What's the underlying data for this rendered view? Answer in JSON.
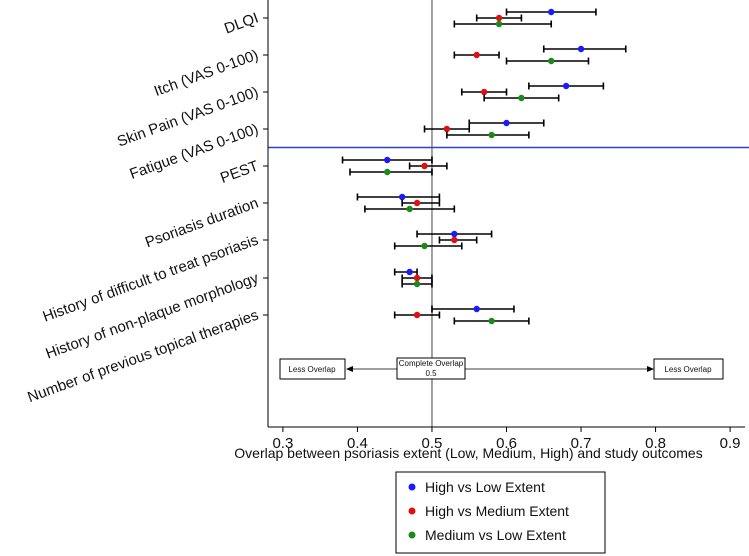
{
  "chart_data": {
    "type": "forest",
    "xlabel": "Overlap between psoriasis extent (Low, Medium, High) and study outcomes",
    "xlim": [
      0.28,
      0.92
    ],
    "xticks": [
      0.3,
      0.4,
      0.5,
      0.6,
      0.7,
      0.8,
      0.9
    ],
    "xtick_labels": [
      "0.3",
      "0.4",
      "0.5",
      "0.6",
      "0.7",
      "0.8",
      "0.9"
    ],
    "reference_line": 0.5,
    "categories": [
      "DLQI",
      "Itch (VAS 0-100)",
      "Skin Pain (VAS 0-100)",
      "Fatigue (VAS 0-100)",
      "PEST",
      "Psoriasis duration",
      "History of difficult to treat psoriasis",
      "History of non-plaque morphology",
      "Number of previous topical therapies"
    ],
    "series": [
      {
        "name": "High vs Low Extent",
        "color": "#1a1aff",
        "points": [
          {
            "est": 0.66,
            "lo": 0.6,
            "hi": 0.72
          },
          {
            "est": 0.7,
            "lo": 0.65,
            "hi": 0.76
          },
          {
            "est": 0.68,
            "lo": 0.63,
            "hi": 0.73
          },
          {
            "est": 0.6,
            "lo": 0.55,
            "hi": 0.65
          },
          {
            "est": 0.44,
            "lo": 0.38,
            "hi": 0.5
          },
          {
            "est": 0.46,
            "lo": 0.4,
            "hi": 0.51
          },
          {
            "est": 0.53,
            "lo": 0.48,
            "hi": 0.58
          },
          {
            "est": 0.47,
            "lo": 0.45,
            "hi": 0.48
          },
          {
            "est": 0.56,
            "lo": 0.5,
            "hi": 0.61
          }
        ]
      },
      {
        "name": "High vs Medium Extent",
        "color": "#e01010",
        "points": [
          {
            "est": 0.59,
            "lo": 0.56,
            "hi": 0.62
          },
          {
            "est": 0.56,
            "lo": 0.53,
            "hi": 0.59
          },
          {
            "est": 0.57,
            "lo": 0.54,
            "hi": 0.6
          },
          {
            "est": 0.52,
            "lo": 0.49,
            "hi": 0.55
          },
          {
            "est": 0.49,
            "lo": 0.47,
            "hi": 0.52
          },
          {
            "est": 0.48,
            "lo": 0.46,
            "hi": 0.51
          },
          {
            "est": 0.53,
            "lo": 0.51,
            "hi": 0.56
          },
          {
            "est": 0.48,
            "lo": 0.46,
            "hi": 0.5
          },
          {
            "est": 0.48,
            "lo": 0.45,
            "hi": 0.51
          }
        ]
      },
      {
        "name": "Medium vs Low Extent",
        "color": "#1a8a1a",
        "points": [
          {
            "est": 0.59,
            "lo": 0.53,
            "hi": 0.66
          },
          {
            "est": 0.66,
            "lo": 0.6,
            "hi": 0.71
          },
          {
            "est": 0.62,
            "lo": 0.57,
            "hi": 0.67
          },
          {
            "est": 0.58,
            "lo": 0.52,
            "hi": 0.63
          },
          {
            "est": 0.44,
            "lo": 0.39,
            "hi": 0.5
          },
          {
            "est": 0.47,
            "lo": 0.41,
            "hi": 0.53
          },
          {
            "est": 0.49,
            "lo": 0.45,
            "hi": 0.54
          },
          {
            "est": 0.48,
            "lo": 0.46,
            "hi": 0.5
          },
          {
            "est": 0.58,
            "lo": 0.53,
            "hi": 0.63
          }
        ]
      }
    ],
    "separator": {
      "after_category": "Fatigue (VAS 0-100)",
      "color": "#2f3fc8"
    },
    "annotations": {
      "left": "Less Overlap",
      "center": [
        "Complete Overlap",
        "0.5"
      ],
      "right": "Less Overlap"
    },
    "legend_position": "bottom-center"
  }
}
